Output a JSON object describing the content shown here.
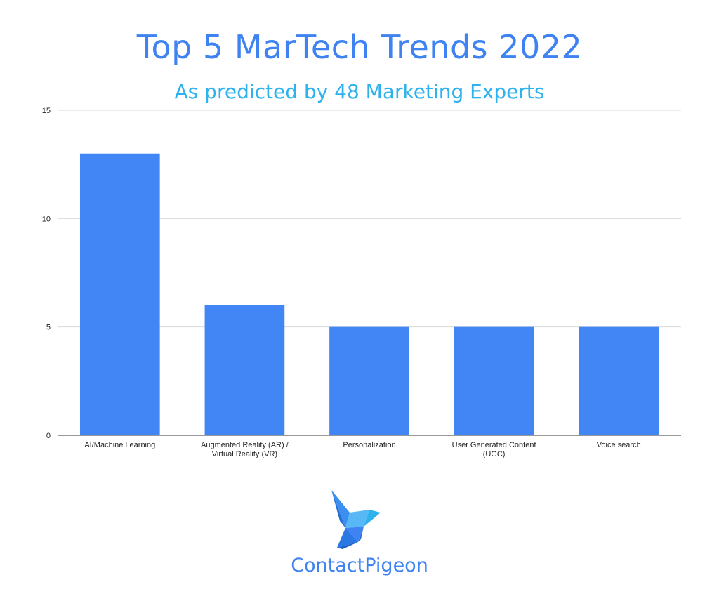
{
  "chart_data": {
    "type": "bar",
    "title": "Top 5 MarTech Trends 2022",
    "subtitle": "As predicted by 48 Marketing Experts",
    "categories": [
      "AI/Machine Learning",
      "Augmented Reality (AR) / Virtual Reality (VR)",
      "Personalization",
      "User Generated Content (UGC)",
      "Voice search"
    ],
    "category_label_lines": [
      [
        "AI/Machine Learning"
      ],
      [
        "Augmented Reality (AR) /",
        "Virtual Reality (VR)"
      ],
      [
        "Personalization"
      ],
      [
        "User Generated Content",
        "(UGC)"
      ],
      [
        "Voice search"
      ]
    ],
    "values": [
      13,
      6,
      5,
      5,
      5
    ],
    "ylim": [
      0,
      15
    ],
    "yticks": [
      0,
      5,
      10,
      15
    ],
    "xlabel": "",
    "ylabel": "",
    "grid": true,
    "bar_color": "#4285f4"
  },
  "brand": {
    "name": "ContactPigeon",
    "logo_icon": "pigeon-logo-icon"
  },
  "colors": {
    "title": "#3f83f2",
    "subtitle": "#2eb2ee",
    "gridline": "#d9d9d9"
  }
}
